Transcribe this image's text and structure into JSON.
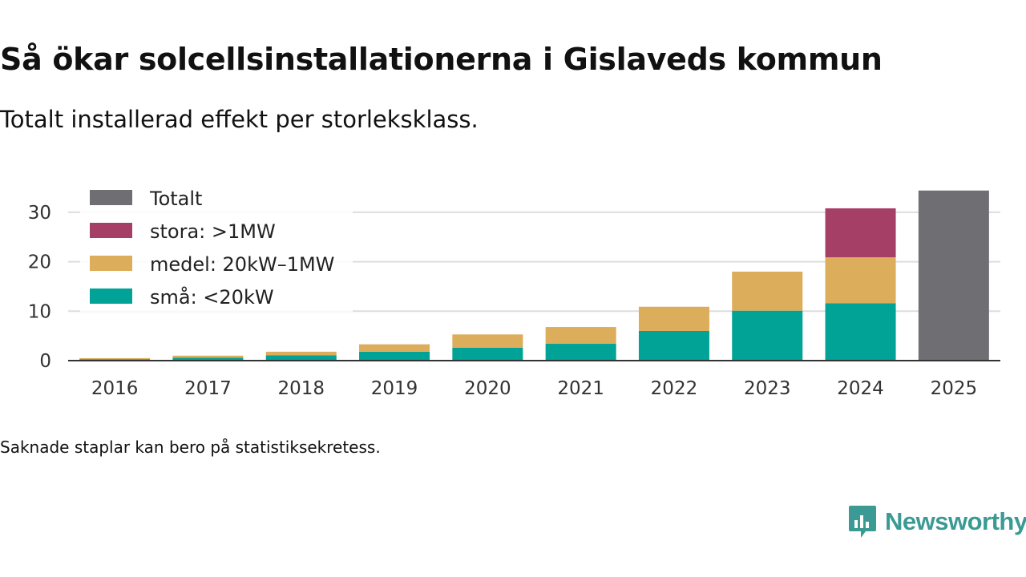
{
  "header": {
    "title": "Så ökar solcellsinstallationerna i Gislaveds kommun",
    "subtitle": "Totalt installerad effekt per storleksklass."
  },
  "footnote": "Saknade staplar kan bero på statistiksekretess.",
  "brand": {
    "name": "Newsworthy",
    "icon": "newsworthy-logo-icon",
    "color": "#3b9a93"
  },
  "chart_data": {
    "type": "bar",
    "stacked": true,
    "title": "",
    "xlabel": "",
    "ylabel": "",
    "ylim": [
      0,
      35
    ],
    "yticks": [
      0,
      10,
      20,
      30
    ],
    "grid": true,
    "legend_position": "top-left",
    "categories": [
      "2016",
      "2017",
      "2018",
      "2019",
      "2020",
      "2021",
      "2022",
      "2023",
      "2024",
      "2025"
    ],
    "series": [
      {
        "name": "små: <20kW",
        "color": "#00a396",
        "values": [
          0.3,
          0.6,
          1.1,
          1.8,
          2.6,
          3.4,
          6.0,
          10.1,
          11.6,
          null
        ]
      },
      {
        "name": "medel: 20kW–1MW",
        "color": "#dcad5a",
        "values": [
          0.2,
          0.4,
          0.7,
          1.5,
          2.7,
          3.4,
          4.9,
          7.9,
          9.3,
          null
        ]
      },
      {
        "name": "stora: >1MW",
        "color": "#a63f66",
        "values": [
          null,
          null,
          null,
          null,
          null,
          null,
          null,
          null,
          9.9,
          null
        ]
      },
      {
        "name": "Totalt",
        "color": "#6f6e73",
        "values": [
          null,
          null,
          null,
          null,
          null,
          null,
          null,
          null,
          null,
          34.4
        ]
      }
    ],
    "legend_order": [
      "Totalt",
      "stora: >1MW",
      "medel: 20kW–1MW",
      "små: <20kW"
    ]
  }
}
